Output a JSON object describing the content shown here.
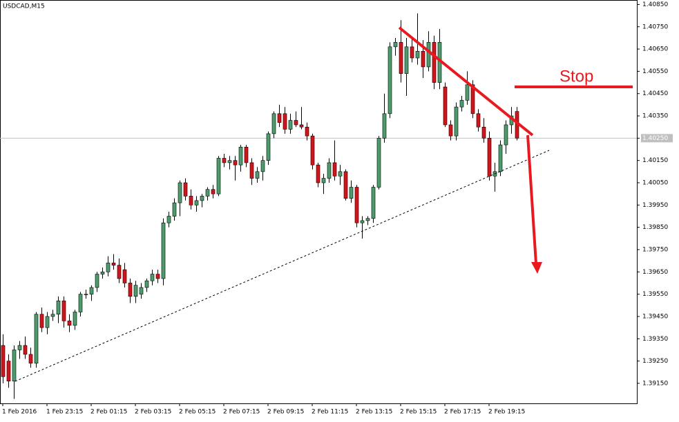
{
  "chart_data": {
    "type": "candlestick",
    "title": "USDCAD,M15",
    "annotation": "Stop",
    "categories": [
      "1 Feb 2016",
      null,
      null,
      null,
      null,
      null,
      null,
      null,
      "1 Feb 23:15",
      null,
      null,
      null,
      null,
      null,
      null,
      null,
      "2 Feb 01:15",
      null,
      null,
      null,
      null,
      null,
      null,
      null,
      "2 Feb 03:15",
      null,
      null,
      null,
      null,
      null,
      null,
      null,
      "2 Feb 05:15",
      null,
      null,
      null,
      null,
      null,
      null,
      null,
      "2 Feb 07:15",
      null,
      null,
      null,
      null,
      null,
      null,
      null,
      "2 Feb 09:15",
      null,
      null,
      null,
      null,
      null,
      null,
      null,
      "2 Feb 11:15",
      null,
      null,
      null,
      null,
      null,
      null,
      null,
      "2 Feb 13:15",
      null,
      null,
      null,
      null,
      null,
      null,
      null,
      "2 Feb 15:15",
      null,
      null,
      null,
      null,
      null,
      null,
      null,
      "2 Feb 17:15",
      null,
      null,
      null,
      null,
      null,
      null,
      null,
      "2 Feb 19:15",
      null,
      null,
      null,
      null,
      null
    ],
    "open": [
      1.3932,
      1.3925,
      1.3916,
      1.393,
      1.3932,
      1.3928,
      1.3924,
      1.3946,
      1.394,
      1.3945,
      1.3946,
      1.3952,
      1.3943,
      1.3941,
      1.3947,
      1.3955,
      1.3955,
      1.3958,
      1.3964,
      1.3965,
      1.3969,
      1.3968,
      1.3966,
      1.396,
      1.3954,
      1.3955,
      1.3958,
      1.3961,
      1.3964,
      1.3962,
      1.3987,
      1.399,
      1.3996,
      1.4005,
      1.3999,
      1.3995,
      1.3997,
      1.3999,
      1.4002,
      1.4,
      1.4016,
      1.4014,
      1.4015,
      1.4013,
      1.4021,
      1.4014,
      1.4007,
      1.401,
      1.4015,
      1.4027,
      1.4036,
      1.4036,
      1.4029,
      1.4033,
      1.4031,
      1.403,
      1.4026,
      1.4013,
      1.4005,
      1.4007,
      1.4014,
      1.4008,
      1.401,
      1.3998,
      1.4003,
      1.3987,
      1.3988,
      1.3989,
      1.4003,
      1.4025,
      1.4036,
      1.4066,
      1.4068,
      1.4054,
      1.4066,
      1.4061,
      1.4064,
      1.4057,
      1.4068,
      1.405,
      1.4048,
      1.4031,
      1.4026,
      1.4039,
      1.4042,
      1.4049,
      1.4036,
      1.403,
      1.4025,
      1.4008,
      1.401,
      1.4022,
      1.4031,
      1.4037
    ],
    "high": [
      1.3937,
      1.3928,
      1.3932,
      1.3934,
      1.3936,
      1.3931,
      1.3947,
      1.3949,
      1.3947,
      1.3948,
      1.3954,
      1.3954,
      1.3946,
      1.3948,
      1.3956,
      1.3957,
      1.3959,
      1.3965,
      1.3967,
      1.3972,
      1.3973,
      1.3971,
      1.3969,
      1.3962,
      1.3961,
      1.396,
      1.3962,
      1.3966,
      1.3966,
      1.3989,
      1.3992,
      1.3998,
      1.4006,
      1.4007,
      1.4002,
      1.3999,
      1.4,
      1.4003,
      1.4004,
      1.4017,
      1.4018,
      1.4017,
      1.4017,
      1.4022,
      1.4022,
      1.4016,
      1.4012,
      1.4017,
      1.4028,
      1.4037,
      1.404,
      1.4039,
      1.4036,
      1.4037,
      1.4039,
      1.4032,
      1.4027,
      1.4014,
      1.4009,
      1.4016,
      1.4024,
      1.4013,
      1.4011,
      1.4006,
      1.4004,
      1.399,
      1.399,
      1.4004,
      1.4026,
      1.4045,
      1.4068,
      1.407,
      1.4078,
      1.407,
      1.407,
      1.4081,
      1.4069,
      1.4073,
      1.4071,
      1.4074,
      1.405,
      1.4033,
      1.4041,
      1.4044,
      1.4055,
      1.4051,
      1.4038,
      1.4034,
      1.4028,
      1.4014,
      1.4024,
      1.4033,
      1.4039,
      1.4039
    ],
    "low": [
      1.3915,
      1.3913,
      1.3908,
      1.3926,
      1.3926,
      1.3922,
      1.3922,
      1.3938,
      1.3937,
      1.3943,
      1.3942,
      1.394,
      1.3938,
      1.3939,
      1.3945,
      1.3953,
      1.3952,
      1.3956,
      1.3962,
      1.3963,
      1.3966,
      1.396,
      1.3958,
      1.3951,
      1.3951,
      1.3953,
      1.3956,
      1.3959,
      1.396,
      1.3959,
      1.3985,
      1.3988,
      1.399,
      1.3997,
      1.3993,
      1.3992,
      1.3994,
      1.3997,
      1.3998,
      1.3999,
      1.4012,
      1.4011,
      1.4006,
      1.401,
      1.4012,
      1.4004,
      1.4005,
      1.4006,
      1.4013,
      1.4025,
      1.403,
      1.4027,
      1.4027,
      1.403,
      1.4029,
      1.4024,
      1.4011,
      1.4003,
      1.4,
      1.4005,
      1.4006,
      1.4004,
      1.3997,
      1.3996,
      1.3985,
      1.398,
      1.3986,
      1.3987,
      1.4002,
      1.4023,
      1.4034,
      1.4062,
      1.405,
      1.4044,
      1.4059,
      1.4058,
      1.4052,
      1.4055,
      1.4047,
      1.4047,
      1.403,
      1.4024,
      1.4024,
      1.4037,
      1.404,
      1.4034,
      1.4028,
      1.4023,
      1.4006,
      1.4001,
      1.4008,
      1.4018,
      1.4027,
      1.4024
    ],
    "close": [
      1.3918,
      1.3916,
      1.393,
      1.3932,
      1.3928,
      1.3924,
      1.3946,
      1.394,
      1.3945,
      1.3946,
      1.3952,
      1.3943,
      1.3941,
      1.3947,
      1.3955,
      1.3955,
      1.3958,
      1.3964,
      1.3965,
      1.3969,
      1.3968,
      1.3962,
      1.396,
      1.3954,
      1.3959,
      1.3958,
      1.3961,
      1.3964,
      1.3962,
      1.3987,
      1.399,
      1.3996,
      1.4005,
      1.3999,
      1.3995,
      1.3997,
      1.3999,
      1.4002,
      1.4,
      1.4016,
      1.4014,
      1.4015,
      1.4013,
      1.4021,
      1.4014,
      1.4007,
      1.401,
      1.4015,
      1.4027,
      1.4036,
      1.4032,
      1.4029,
      1.4033,
      1.4031,
      1.403,
      1.4026,
      1.4013,
      1.4005,
      1.4007,
      1.4014,
      1.4008,
      1.401,
      1.3998,
      1.4003,
      1.3987,
      1.3988,
      1.3989,
      1.4003,
      1.4025,
      1.4036,
      1.4066,
      1.4068,
      1.4054,
      1.4066,
      1.4061,
      1.4064,
      1.4057,
      1.4068,
      1.405,
      1.4068,
      1.4031,
      1.4026,
      1.4039,
      1.4042,
      1.4049,
      1.4036,
      1.403,
      1.4025,
      1.4008,
      1.401,
      1.4022,
      1.4031,
      1.4035,
      1.4025
    ],
    "up_color": "#4f9a6e",
    "down_color": "#d0161c",
    "bid_line": 1.4025,
    "ylim": [
      1.3906,
      1.4087
    ],
    "yticks": [
      {
        "value": 1.4085,
        "label": "1.40850"
      },
      {
        "value": 1.4075,
        "label": "1.40750"
      },
      {
        "value": 1.4065,
        "label": "1.40650"
      },
      {
        "value": 1.4055,
        "label": "1.40550"
      },
      {
        "value": 1.4045,
        "label": "1.40450"
      },
      {
        "value": 1.4035,
        "label": "1.40350"
      },
      {
        "value": 1.4025,
        "label": "1.40250"
      },
      {
        "value": 1.4015,
        "label": "1.40150"
      },
      {
        "value": 1.4005,
        "label": "1.40050"
      },
      {
        "value": 1.3995,
        "label": "1.39950"
      },
      {
        "value": 1.3985,
        "label": "1.39850"
      },
      {
        "value": 1.3975,
        "label": "1.39750"
      },
      {
        "value": 1.3965,
        "label": "1.39650"
      },
      {
        "value": 1.3955,
        "label": "1.39550"
      },
      {
        "value": 1.3945,
        "label": "1.39450"
      },
      {
        "value": 1.3935,
        "label": "1.39350"
      },
      {
        "value": 1.3925,
        "label": "1.39250"
      },
      {
        "value": 1.3915,
        "label": "1.39150"
      }
    ]
  }
}
